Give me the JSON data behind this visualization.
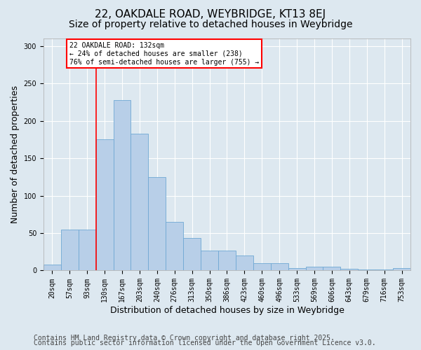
{
  "title_line1": "22, OAKDALE ROAD, WEYBRIDGE, KT13 8EJ",
  "title_line2": "Size of property relative to detached houses in Weybridge",
  "xlabel": "Distribution of detached houses by size in Weybridge",
  "ylabel": "Number of detached properties",
  "categories": [
    "20sqm",
    "57sqm",
    "93sqm",
    "130sqm",
    "167sqm",
    "203sqm",
    "240sqm",
    "276sqm",
    "313sqm",
    "350sqm",
    "386sqm",
    "423sqm",
    "460sqm",
    "496sqm",
    "533sqm",
    "569sqm",
    "606sqm",
    "643sqm",
    "679sqm",
    "716sqm",
    "753sqm"
  ],
  "values": [
    8,
    55,
    55,
    175,
    228,
    183,
    125,
    65,
    43,
    27,
    27,
    20,
    10,
    10,
    3,
    5,
    5,
    2,
    1,
    1,
    3
  ],
  "bar_color": "#b8cfe8",
  "bar_edgecolor": "#6fa8d4",
  "background_color": "#dde8f0",
  "plot_background": "#dde8f0",
  "red_line_x": 2.5,
  "annotation_text": "22 OAKDALE ROAD: 132sqm\n← 24% of detached houses are smaller (238)\n76% of semi-detached houses are larger (755) →",
  "annotation_box_color": "white",
  "annotation_box_edgecolor": "red",
  "ylim": [
    0,
    310
  ],
  "yticks": [
    0,
    50,
    100,
    150,
    200,
    250,
    300
  ],
  "footer_line1": "Contains HM Land Registry data © Crown copyright and database right 2025.",
  "footer_line2": "Contains public sector information licensed under the Open Government Licence v3.0.",
  "title_fontsize": 11,
  "subtitle_fontsize": 10,
  "axis_label_fontsize": 9,
  "tick_fontsize": 7,
  "footer_fontsize": 7
}
